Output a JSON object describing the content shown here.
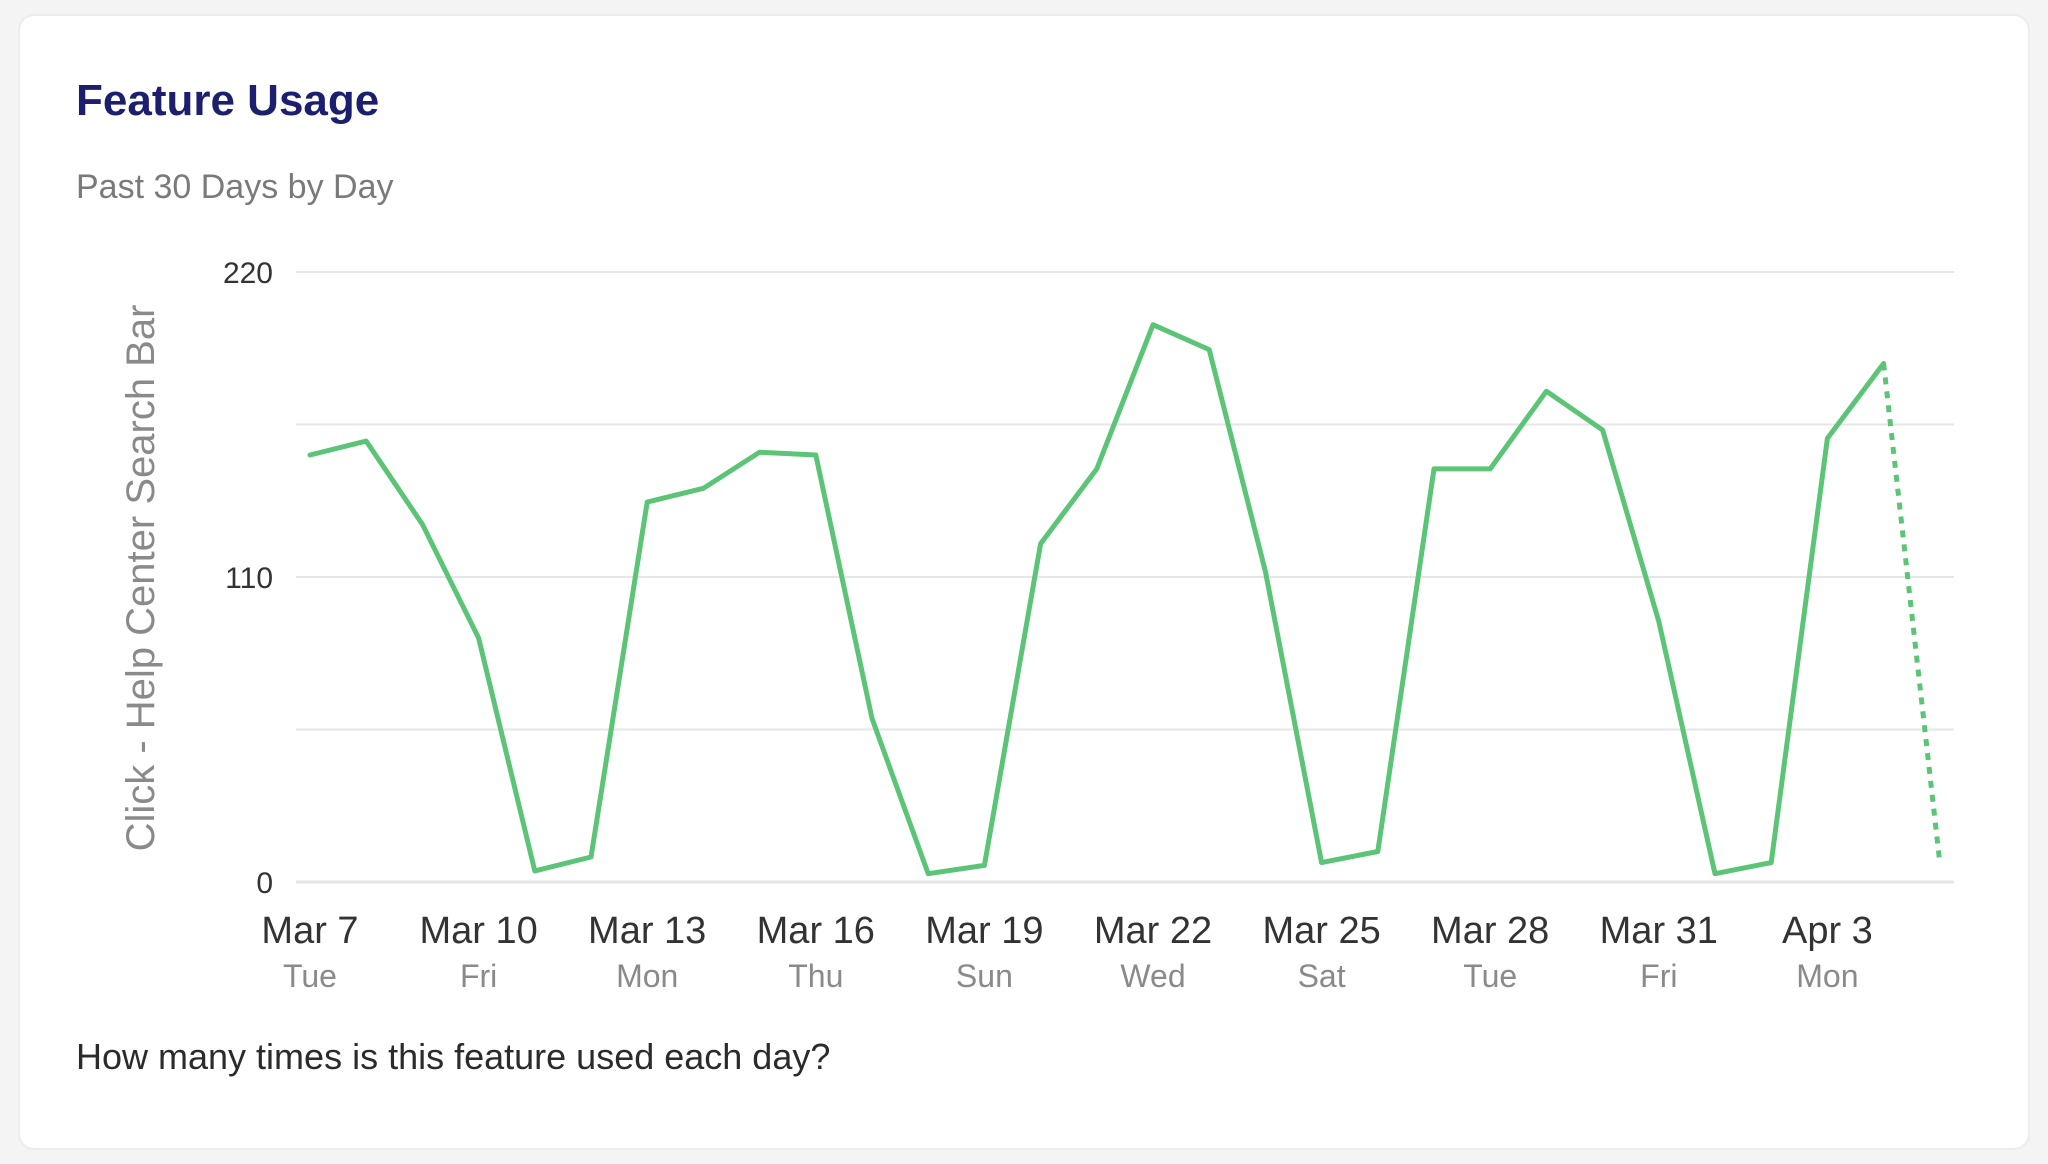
{
  "card": {
    "title": "Feature Usage",
    "subtitle": "Past 30 Days by Day",
    "question": "How many times is this feature used each day?"
  },
  "colors": {
    "line": "#5cc476",
    "title": "#1c1f6e",
    "grid": "#e6e6e6"
  },
  "chart_data": {
    "type": "line",
    "ylabel": "Click - Help Center Search Bar",
    "ylim": [
      0,
      220
    ],
    "y_ticks": [
      0,
      110,
      220
    ],
    "grid": true,
    "x_tick_labels": [
      {
        "date": "Mar 7",
        "day": "Tue",
        "index": 0
      },
      {
        "date": "Mar 10",
        "day": "Fri",
        "index": 3
      },
      {
        "date": "Mar 13",
        "day": "Mon",
        "index": 6
      },
      {
        "date": "Mar 16",
        "day": "Thu",
        "index": 9
      },
      {
        "date": "Mar 19",
        "day": "Sun",
        "index": 12
      },
      {
        "date": "Mar 22",
        "day": "Wed",
        "index": 15
      },
      {
        "date": "Mar 25",
        "day": "Sat",
        "index": 18
      },
      {
        "date": "Mar 28",
        "day": "Tue",
        "index": 21
      },
      {
        "date": "Mar 31",
        "day": "Fri",
        "index": 24
      },
      {
        "date": "Apr 3",
        "day": "Mon",
        "index": 27
      }
    ],
    "series": [
      {
        "x": [
          "Mar 7",
          "Mar 8",
          "Mar 9",
          "Mar 10",
          "Mar 11",
          "Mar 12",
          "Mar 13",
          "Mar 14",
          "Mar 15",
          "Mar 16",
          "Mar 17",
          "Mar 18",
          "Mar 19",
          "Mar 20",
          "Mar 21",
          "Mar 22",
          "Mar 23",
          "Mar 24",
          "Mar 25",
          "Mar 26",
          "Mar 27",
          "Mar 28",
          "Mar 29",
          "Mar 30",
          "Mar 31",
          "Apr 1",
          "Apr 2",
          "Apr 3",
          "Apr 4",
          "Apr 5"
        ],
        "values": [
          154,
          159,
          129,
          88,
          4,
          9,
          137,
          142,
          155,
          154,
          59,
          3,
          6,
          122,
          149,
          201,
          192,
          112,
          7,
          11,
          149,
          149,
          177,
          163,
          94,
          3,
          7,
          160,
          187,
          7
        ],
        "dashed_last_segment": true
      }
    ]
  }
}
